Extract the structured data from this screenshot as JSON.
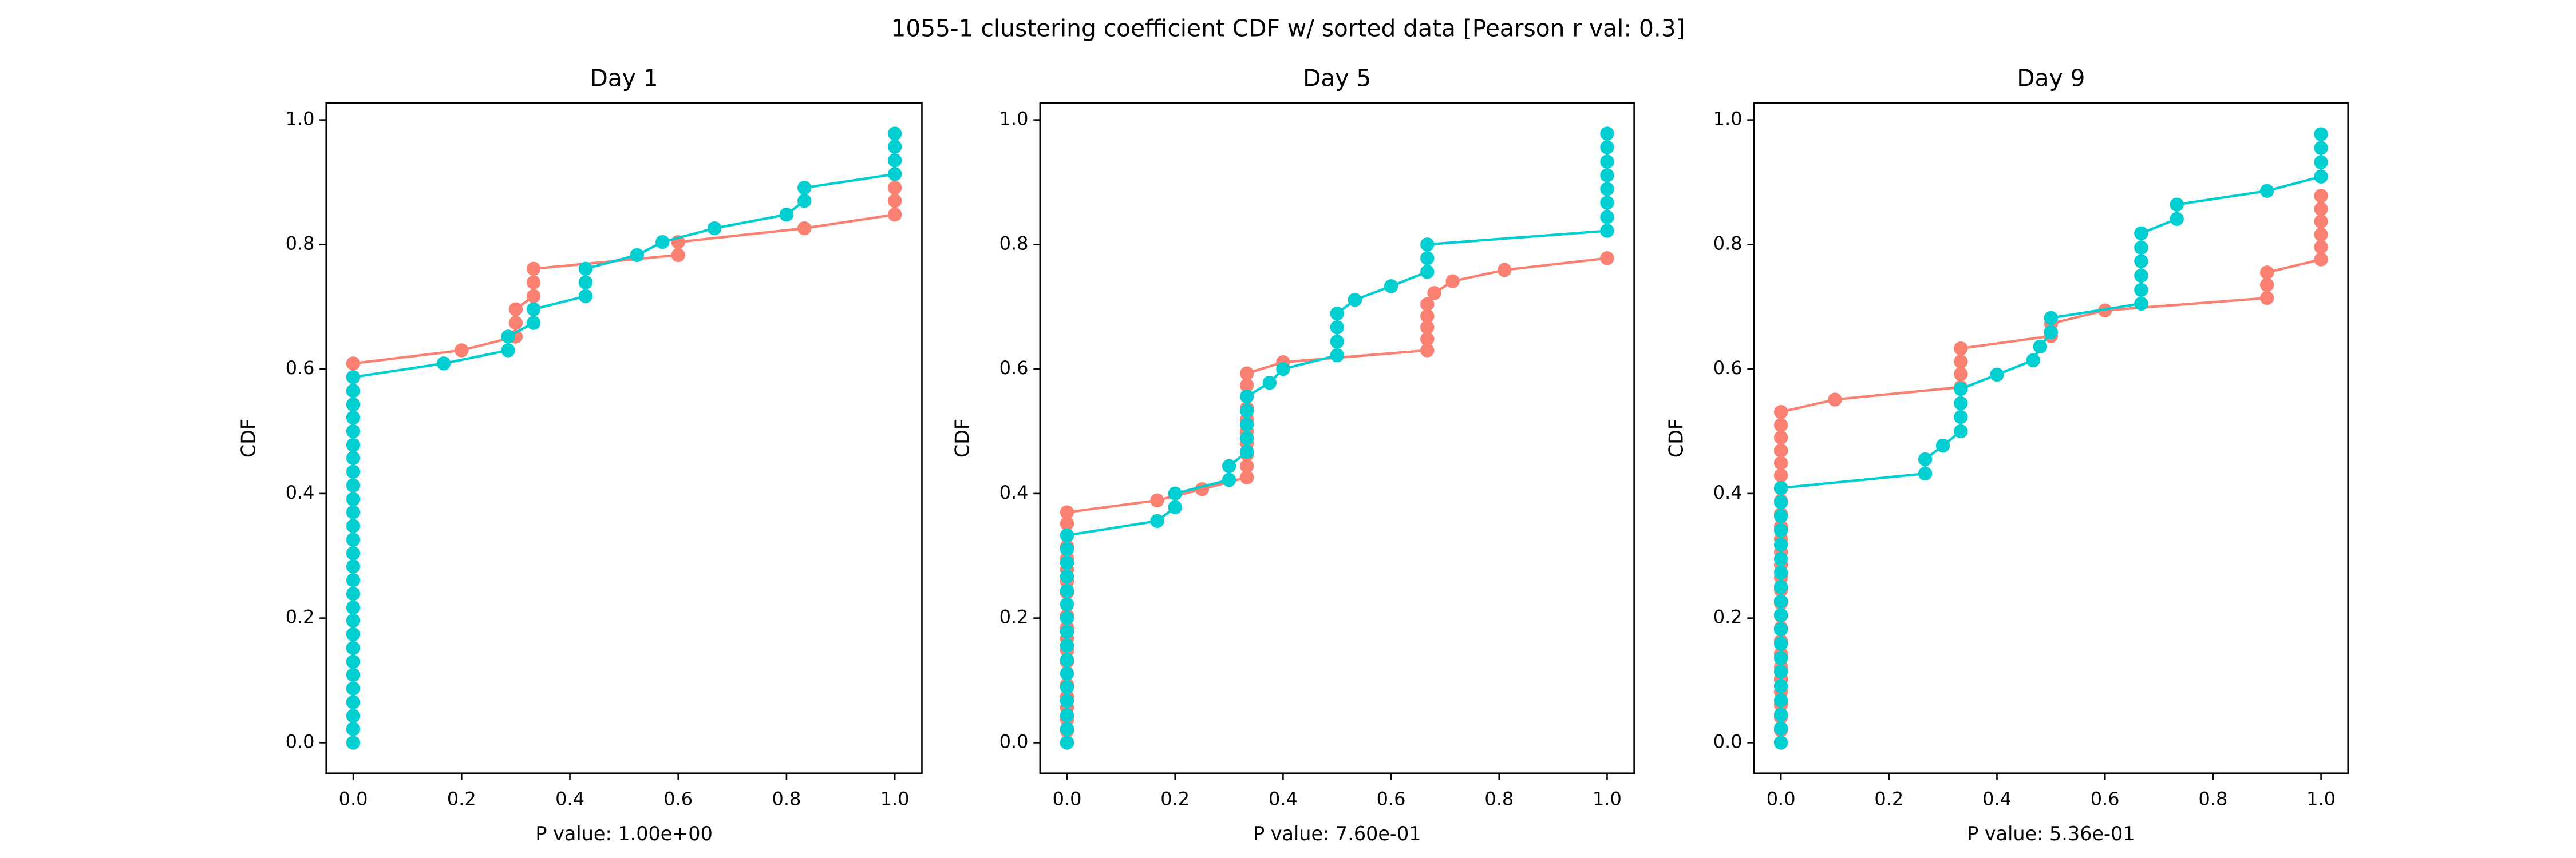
{
  "title": "1055-1 clustering coefficient CDF w/ sorted data [Pearson r val: 0.3]",
  "chart_data": [
    {
      "type": "line",
      "title": "Day 1",
      "xlabel": "P value: 1.00e+00",
      "ylabel": "CDF",
      "markers": true,
      "xlim": [
        -0.05,
        1.05
      ],
      "ylim": [
        -0.049,
        1.027
      ],
      "xticks": [
        {
          "value": 0,
          "label": "0.0"
        },
        {
          "value": 0.2,
          "label": "0.2"
        },
        {
          "value": 0.4,
          "label": "0.4"
        },
        {
          "value": 0.6,
          "label": "0.6"
        },
        {
          "value": 0.8,
          "label": "0.8"
        },
        {
          "value": 1,
          "label": "1.0"
        }
      ],
      "yticks": [
        {
          "value": 0,
          "label": "0.0"
        },
        {
          "value": 0.2,
          "label": "0.2"
        },
        {
          "value": 0.4,
          "label": "0.4"
        },
        {
          "value": 0.6,
          "label": "0.6"
        },
        {
          "value": 0.8,
          "label": "0.8"
        },
        {
          "value": 1,
          "label": "1.0"
        }
      ],
      "series": [
        {
          "color": "#fa8072",
          "x": [
            0,
            0,
            0,
            0,
            0,
            0,
            0,
            0,
            0,
            0,
            0,
            0,
            0,
            0,
            0,
            0,
            0,
            0,
            0,
            0,
            0,
            0,
            0,
            0,
            0,
            0,
            0,
            0,
            0,
            0.2,
            0.3,
            0.3,
            0.3,
            0.333,
            0.333,
            0.333,
            0.6,
            0.6,
            0.833,
            1,
            1,
            1
          ],
          "values": [
            0,
            0.022,
            0.043,
            0.065,
            0.087,
            0.109,
            0.13,
            0.152,
            0.174,
            0.196,
            0.217,
            0.239,
            0.261,
            0.283,
            0.304,
            0.326,
            0.348,
            0.37,
            0.391,
            0.413,
            0.435,
            0.457,
            0.478,
            0.5,
            0.522,
            0.543,
            0.565,
            0.587,
            0.609,
            0.63,
            0.652,
            0.674,
            0.696,
            0.717,
            0.739,
            0.761,
            0.783,
            0.804,
            0.826,
            0.848,
            0.87,
            0.891
          ]
        },
        {
          "color": "#00ced1",
          "x": [
            0,
            0,
            0,
            0,
            0,
            0,
            0,
            0,
            0,
            0,
            0,
            0,
            0,
            0,
            0,
            0,
            0,
            0,
            0,
            0,
            0,
            0,
            0,
            0,
            0,
            0,
            0,
            0,
            0.167,
            0.286,
            0.286,
            0.333,
            0.333,
            0.429,
            0.429,
            0.429,
            0.524,
            0.571,
            0.667,
            0.8,
            0.833,
            0.833,
            1,
            1,
            1,
            1
          ],
          "values": [
            0,
            0.022,
            0.043,
            0.065,
            0.087,
            0.109,
            0.13,
            0.152,
            0.174,
            0.196,
            0.217,
            0.239,
            0.261,
            0.283,
            0.304,
            0.326,
            0.348,
            0.37,
            0.391,
            0.413,
            0.435,
            0.457,
            0.478,
            0.5,
            0.522,
            0.543,
            0.565,
            0.587,
            0.609,
            0.63,
            0.652,
            0.674,
            0.696,
            0.717,
            0.739,
            0.761,
            0.783,
            0.804,
            0.826,
            0.848,
            0.87,
            0.891,
            0.913,
            0.935,
            0.957,
            0.978
          ]
        }
      ]
    },
    {
      "type": "line",
      "title": "Day 5",
      "xlabel": "P value: 7.60e-01",
      "ylabel": "CDF",
      "markers": true,
      "xlim": [
        -0.05,
        1.05
      ],
      "ylim": [
        -0.049,
        1.027
      ],
      "xticks": [
        {
          "value": 0,
          "label": "0.0"
        },
        {
          "value": 0.2,
          "label": "0.2"
        },
        {
          "value": 0.4,
          "label": "0.4"
        },
        {
          "value": 0.6,
          "label": "0.6"
        },
        {
          "value": 0.8,
          "label": "0.8"
        },
        {
          "value": 1,
          "label": "1.0"
        }
      ],
      "yticks": [
        {
          "value": 0,
          "label": "0.0"
        },
        {
          "value": 0.2,
          "label": "0.2"
        },
        {
          "value": 0.4,
          "label": "0.4"
        },
        {
          "value": 0.6,
          "label": "0.6"
        },
        {
          "value": 0.8,
          "label": "0.8"
        },
        {
          "value": 1,
          "label": "1.0"
        }
      ],
      "series": [
        {
          "color": "#fa8072",
          "x": [
            0,
            0,
            0,
            0,
            0,
            0,
            0,
            0,
            0,
            0,
            0,
            0,
            0,
            0,
            0,
            0,
            0,
            0,
            0,
            0,
            0,
            0.167,
            0.25,
            0.333,
            0.333,
            0.333,
            0.333,
            0.333,
            0.333,
            0.333,
            0.333,
            0.333,
            0.333,
            0.4,
            0.667,
            0.667,
            0.667,
            0.667,
            0.667,
            0.68,
            0.714,
            0.81,
            1
          ],
          "values": [
            0,
            0.019,
            0.037,
            0.056,
            0.074,
            0.093,
            0.111,
            0.13,
            0.148,
            0.167,
            0.185,
            0.204,
            0.222,
            0.241,
            0.259,
            0.278,
            0.296,
            0.315,
            0.333,
            0.352,
            0.37,
            0.389,
            0.407,
            0.426,
            0.444,
            0.463,
            0.481,
            0.5,
            0.519,
            0.537,
            0.556,
            0.574,
            0.593,
            0.611,
            0.63,
            0.648,
            0.667,
            0.685,
            0.704,
            0.722,
            0.741,
            0.759,
            0.778
          ]
        },
        {
          "color": "#00ced1",
          "x": [
            0,
            0,
            0,
            0,
            0,
            0,
            0,
            0,
            0,
            0,
            0,
            0,
            0,
            0,
            0,
            0,
            0.167,
            0.2,
            0.2,
            0.3,
            0.3,
            0.333,
            0.333,
            0.333,
            0.333,
            0.333,
            0.375,
            0.4,
            0.5,
            0.5,
            0.5,
            0.5,
            0.533,
            0.6,
            0.667,
            0.667,
            0.667,
            1,
            1,
            1,
            1,
            1,
            1,
            1,
            1
          ],
          "values": [
            0,
            0.022,
            0.044,
            0.067,
            0.089,
            0.111,
            0.133,
            0.156,
            0.178,
            0.2,
            0.222,
            0.244,
            0.267,
            0.289,
            0.311,
            0.333,
            0.356,
            0.378,
            0.4,
            0.422,
            0.444,
            0.467,
            0.489,
            0.511,
            0.533,
            0.556,
            0.578,
            0.6,
            0.622,
            0.644,
            0.667,
            0.689,
            0.711,
            0.733,
            0.756,
            0.778,
            0.8,
            0.822,
            0.844,
            0.867,
            0.889,
            0.911,
            0.933,
            0.956,
            0.978
          ]
        }
      ]
    },
    {
      "type": "line",
      "title": "Day 9",
      "xlabel": "P value: 5.36e-01",
      "ylabel": "CDF",
      "markers": true,
      "xlim": [
        -0.05,
        1.05
      ],
      "ylim": [
        -0.049,
        1.027
      ],
      "xticks": [
        {
          "value": 0,
          "label": "0.0"
        },
        {
          "value": 0.2,
          "label": "0.2"
        },
        {
          "value": 0.4,
          "label": "0.4"
        },
        {
          "value": 0.6,
          "label": "0.6"
        },
        {
          "value": 0.8,
          "label": "0.8"
        },
        {
          "value": 1,
          "label": "1.0"
        }
      ],
      "yticks": [
        {
          "value": 0,
          "label": "0.0"
        },
        {
          "value": 0.2,
          "label": "0.2"
        },
        {
          "value": 0.4,
          "label": "0.4"
        },
        {
          "value": 0.6,
          "label": "0.6"
        },
        {
          "value": 0.8,
          "label": "0.8"
        },
        {
          "value": 1,
          "label": "1.0"
        }
      ],
      "series": [
        {
          "color": "#fa8072",
          "x": [
            0,
            0,
            0,
            0,
            0,
            0,
            0,
            0,
            0,
            0,
            0,
            0,
            0,
            0,
            0,
            0,
            0,
            0,
            0,
            0,
            0,
            0,
            0,
            0,
            0,
            0,
            0,
            0.1,
            0.333,
            0.333,
            0.333,
            0.333,
            0.5,
            0.5,
            0.6,
            0.9,
            0.9,
            0.9,
            1,
            1,
            1,
            1,
            1,
            1
          ],
          "values": [
            0,
            0.02,
            0.041,
            0.061,
            0.082,
            0.102,
            0.122,
            0.143,
            0.163,
            0.184,
            0.204,
            0.224,
            0.245,
            0.265,
            0.286,
            0.306,
            0.327,
            0.347,
            0.367,
            0.388,
            0.408,
            0.429,
            0.449,
            0.469,
            0.49,
            0.51,
            0.531,
            0.551,
            0.571,
            0.592,
            0.612,
            0.633,
            0.653,
            0.673,
            0.694,
            0.714,
            0.735,
            0.755,
            0.776,
            0.796,
            0.816,
            0.837,
            0.857,
            0.878
          ]
        },
        {
          "color": "#00ced1",
          "x": [
            0,
            0,
            0,
            0,
            0,
            0,
            0,
            0,
            0,
            0,
            0,
            0,
            0,
            0,
            0,
            0,
            0,
            0,
            0,
            0.267,
            0.267,
            0.3,
            0.333,
            0.333,
            0.333,
            0.333,
            0.4,
            0.467,
            0.48,
            0.5,
            0.5,
            0.667,
            0.667,
            0.667,
            0.667,
            0.667,
            0.667,
            0.733,
            0.733,
            0.9,
            1,
            1,
            1,
            1
          ],
          "values": [
            0,
            0.023,
            0.045,
            0.068,
            0.091,
            0.114,
            0.136,
            0.159,
            0.182,
            0.205,
            0.227,
            0.25,
            0.273,
            0.295,
            0.318,
            0.341,
            0.364,
            0.386,
            0.409,
            0.432,
            0.455,
            0.477,
            0.5,
            0.523,
            0.545,
            0.568,
            0.591,
            0.614,
            0.636,
            0.659,
            0.682,
            0.705,
            0.727,
            0.75,
            0.773,
            0.795,
            0.818,
            0.841,
            0.864,
            0.886,
            0.909,
            0.932,
            0.955,
            0.977
          ]
        }
      ]
    }
  ]
}
